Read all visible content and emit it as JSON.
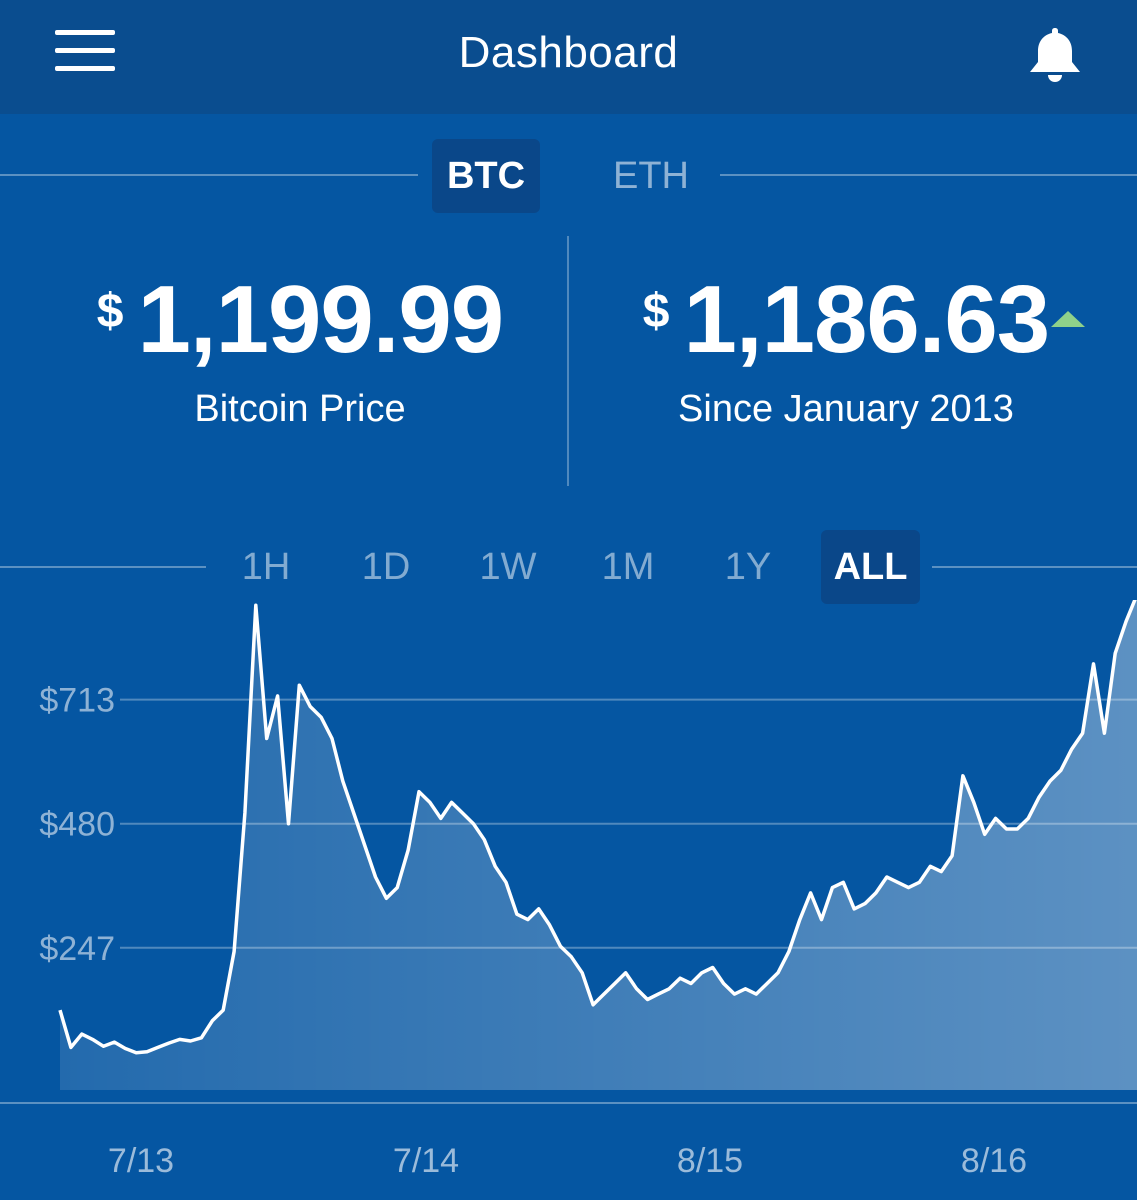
{
  "header": {
    "title": "Dashboard",
    "menu_icon": "hamburger-menu-icon",
    "bell_icon": "bell-icon"
  },
  "currency_tabs": [
    {
      "label": "BTC",
      "active": true
    },
    {
      "label": "ETH",
      "active": false
    }
  ],
  "stats": {
    "price": {
      "symbol": "$",
      "value": "1,199.99",
      "label": "Bitcoin Price"
    },
    "change": {
      "symbol": "$",
      "value": "1,186.63",
      "label": "Since January 2013",
      "trend_icon": "trend-up-icon",
      "trend_color": "#8fd18a"
    }
  },
  "range_tabs": [
    {
      "label": "1H",
      "active": false
    },
    {
      "label": "1D",
      "active": false
    },
    {
      "label": "1W",
      "active": false
    },
    {
      "label": "1M",
      "active": false
    },
    {
      "label": "1Y",
      "active": false
    },
    {
      "label": "ALL",
      "active": true
    }
  ],
  "colors": {
    "background": "#0556a2",
    "header": "#0a4d8f",
    "active_tab": "#0a4789",
    "line": "#ffffff"
  },
  "chart_data": {
    "type": "area",
    "title": "",
    "xlabel": "",
    "ylabel": "",
    "y_ticks": [
      "$713",
      "$480",
      "$247"
    ],
    "y_tick_values": [
      713,
      480,
      247
    ],
    "x_ticks": [
      "7/13",
      "7/14",
      "8/15",
      "8/16"
    ],
    "ylim": [
      -20,
      900
    ],
    "grid": true,
    "series": [
      {
        "values": [
          130,
          60,
          85,
          75,
          62,
          70,
          58,
          50,
          52,
          60,
          68,
          75,
          72,
          78,
          110,
          130,
          240,
          500,
          890,
          640,
          720,
          480,
          740,
          700,
          680,
          640,
          560,
          500,
          440,
          380,
          340,
          360,
          430,
          540,
          520,
          490,
          520,
          500,
          480,
          450,
          400,
          370,
          310,
          300,
          320,
          290,
          250,
          230,
          200,
          140,
          160,
          180,
          200,
          170,
          150,
          160,
          170,
          190,
          180,
          200,
          210,
          180,
          160,
          170,
          160,
          180,
          200,
          240,
          300,
          350,
          300,
          360,
          370,
          320,
          330,
          350,
          380,
          370,
          360,
          370,
          400,
          390,
          420,
          570,
          520,
          460,
          490,
          470,
          470,
          490,
          530,
          560,
          580,
          620,
          650,
          780,
          650,
          800,
          860,
          910
        ]
      }
    ]
  }
}
